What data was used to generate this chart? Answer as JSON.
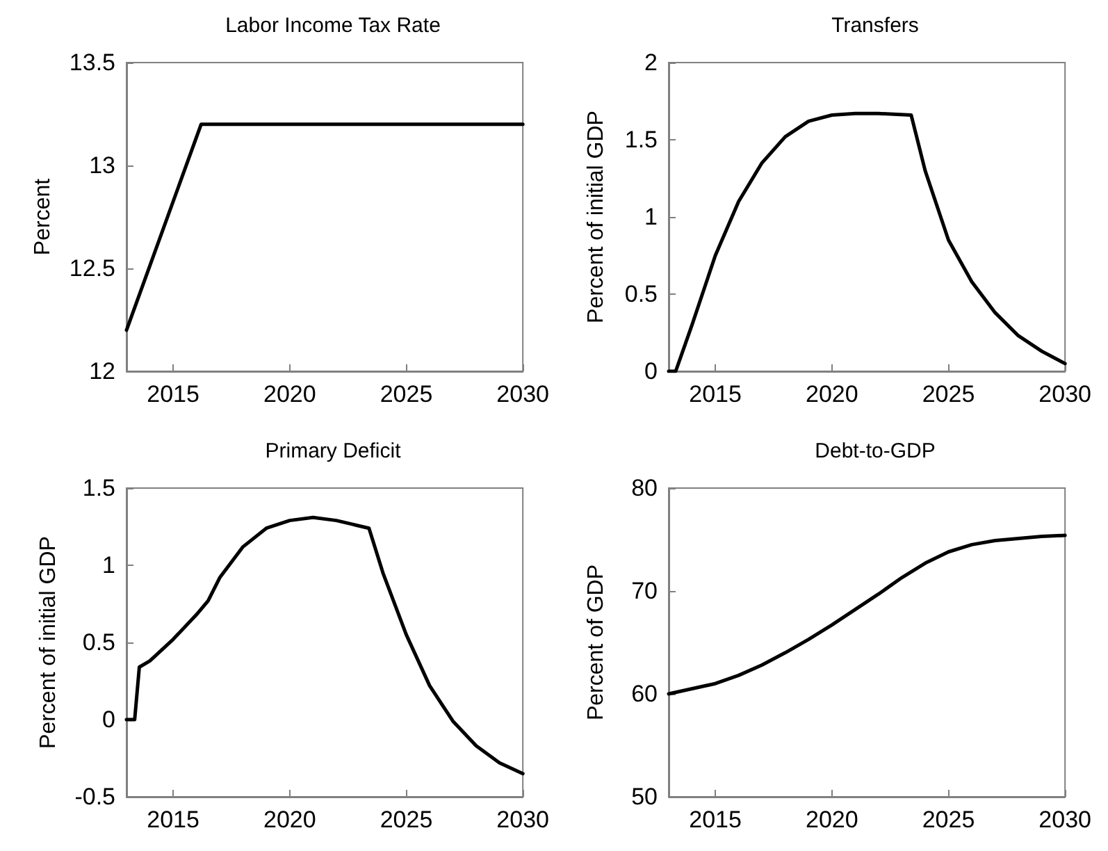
{
  "chart_data": [
    {
      "type": "line",
      "title": "Labor Income Tax Rate",
      "ylabel": "Percent",
      "xlim": [
        2013,
        2030
      ],
      "xticks": [
        2015,
        2020,
        2025,
        2030
      ],
      "ylim": [
        12,
        13.5
      ],
      "yticks": [
        12,
        12.5,
        13,
        13.5
      ],
      "marker": "none",
      "series": [
        {
          "color": "#000000",
          "x": [
            2013,
            2016.2,
            2030
          ],
          "values": [
            12.2,
            13.2,
            13.2
          ]
        }
      ]
    },
    {
      "type": "line",
      "title": "Transfers",
      "ylabel": "Percent of initial GDP",
      "xlim": [
        2013,
        2030
      ],
      "xticks": [
        2015,
        2020,
        2025,
        2030
      ],
      "ylim": [
        0,
        2
      ],
      "yticks": [
        0,
        0.5,
        1,
        1.5,
        2
      ],
      "marker": "none",
      "series": [
        {
          "color": "#000000",
          "x": [
            2013,
            2013.3,
            2014,
            2015,
            2016,
            2017,
            2018,
            2019,
            2020,
            2021,
            2022,
            2023.4,
            2024,
            2025,
            2026,
            2027,
            2028,
            2029,
            2030
          ],
          "values": [
            0,
            0,
            0.3,
            0.75,
            1.1,
            1.35,
            1.52,
            1.62,
            1.66,
            1.67,
            1.67,
            1.66,
            1.3,
            0.85,
            0.58,
            0.38,
            0.23,
            0.13,
            0.05
          ]
        }
      ]
    },
    {
      "type": "line",
      "title": "Primary Deficit",
      "ylabel": "Percent of initial GDP",
      "xlim": [
        2013,
        2030
      ],
      "xticks": [
        2015,
        2020,
        2025,
        2030
      ],
      "ylim": [
        -0.5,
        1.5
      ],
      "yticks": [
        -0.5,
        0,
        0.5,
        1,
        1.5
      ],
      "marker": "none",
      "series": [
        {
          "color": "#000000",
          "x": [
            2013,
            2013.35,
            2013.55,
            2014,
            2015,
            2016,
            2016.5,
            2017,
            2018,
            2019,
            2020,
            2021,
            2022,
            2023.4,
            2024,
            2025,
            2026,
            2027,
            2028,
            2029,
            2030
          ],
          "values": [
            0,
            0,
            0.34,
            0.38,
            0.52,
            0.68,
            0.77,
            0.92,
            1.12,
            1.24,
            1.29,
            1.31,
            1.29,
            1.24,
            0.95,
            0.55,
            0.22,
            -0.01,
            -0.17,
            -0.28,
            -0.35
          ]
        }
      ]
    },
    {
      "type": "line",
      "title": "Debt-to-GDP",
      "ylabel": "Percent of GDP",
      "xlim": [
        2013,
        2030
      ],
      "xticks": [
        2015,
        2020,
        2025,
        2030
      ],
      "ylim": [
        50,
        80
      ],
      "yticks": [
        50,
        60,
        70,
        80
      ],
      "marker": "none",
      "series": [
        {
          "color": "#000000",
          "x": [
            2013,
            2015,
            2016,
            2017,
            2018,
            2019,
            2020,
            2021,
            2022,
            2023,
            2024,
            2025,
            2026,
            2027,
            2028,
            2029,
            2030
          ],
          "values": [
            60,
            61,
            61.8,
            62.8,
            64,
            65.3,
            66.7,
            68.2,
            69.7,
            71.3,
            72.7,
            73.8,
            74.5,
            74.9,
            75.1,
            75.3,
            75.4
          ]
        }
      ]
    }
  ]
}
